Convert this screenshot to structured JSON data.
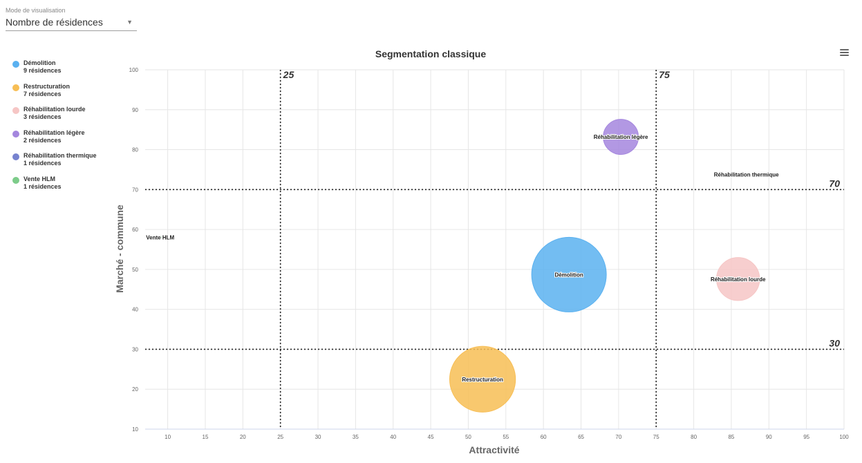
{
  "mode_select": {
    "label": "Mode de visualisation",
    "value": "Nombre de résidences"
  },
  "legend": [
    {
      "name": "Démolition",
      "count": "9 résidences",
      "color": "#5ab1f0"
    },
    {
      "name": "Restructuration",
      "count": "7 résidences",
      "color": "#f7be55"
    },
    {
      "name": "Réhabilitation lourde",
      "count": "3 résidences",
      "color": "#f6c6c5"
    },
    {
      "name": "Réhabilitation légère",
      "count": "2 résidences",
      "color": "#a486de"
    },
    {
      "name": "Réhabilitation thermique",
      "count": "1 résidences",
      "color": "#7783cf"
    },
    {
      "name": "Vente HLM",
      "count": "1 résidences",
      "color": "#7dcc8a"
    }
  ],
  "menu_icon": "hamburger-menu-icon",
  "chart_data": {
    "type": "scatter",
    "title": "Segmentation classique",
    "xlabel": "Attractivité",
    "ylabel": "Marché - commune",
    "xlim": [
      7,
      100
    ],
    "ylim": [
      10,
      100
    ],
    "xticks": [
      10,
      15,
      20,
      25,
      30,
      35,
      40,
      45,
      50,
      55,
      60,
      65,
      70,
      75,
      80,
      85,
      90,
      95,
      100
    ],
    "yticks": [
      10,
      20,
      30,
      40,
      50,
      60,
      70,
      80,
      90,
      100
    ],
    "grid": true,
    "plot_lines": [
      {
        "axis": "x",
        "value": 25,
        "label": "25"
      },
      {
        "axis": "x",
        "value": 75,
        "label": "75"
      },
      {
        "axis": "y",
        "value": 70,
        "label": "70"
      },
      {
        "axis": "y",
        "value": 30,
        "label": "30"
      }
    ],
    "series": [
      {
        "name": "Démolition",
        "x": 63.4,
        "y": 48.7,
        "z": 9,
        "color": "#5ab1f0",
        "opacity": 0.85
      },
      {
        "name": "Restructuration",
        "x": 51.9,
        "y": 22.5,
        "z": 7,
        "color": "#f7be55",
        "opacity": 0.85
      },
      {
        "name": "Réhabilitation lourde",
        "x": 85.9,
        "y": 47.6,
        "z": 3,
        "color": "#f6c6c5",
        "opacity": 0.85
      },
      {
        "name": "Réhabilitation légère",
        "x": 70.3,
        "y": 83.2,
        "z": 2,
        "color": "#a486de",
        "opacity": 0.85
      },
      {
        "name": "Réhabilitation thermique",
        "x": 87.0,
        "y": 73.8,
        "z": 1,
        "color": "#7783cf",
        "opacity": 0.85
      },
      {
        "name": "Vente HLM",
        "x": 9.0,
        "y": 58.0,
        "z": 1,
        "color": "#7dcc8a",
        "opacity": 0.85
      }
    ]
  }
}
